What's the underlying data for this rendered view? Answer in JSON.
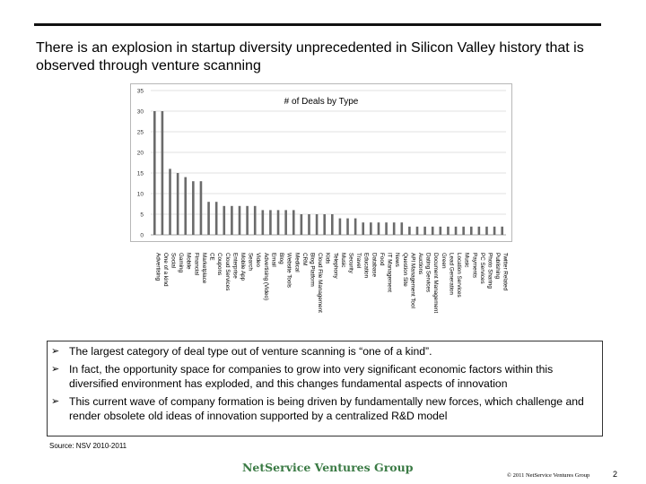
{
  "slide": {
    "title": "There is an explosion in startup diversity unprecedented in Silicon Valley history that is observed through venture scanning",
    "bullets": [
      "The largest category of deal type out of venture scanning is “one of a kind”.",
      "In fact, the opportunity space for companies to grow into very significant economic factors within this diversified environment has exploded, and this changes fundamental aspects of innovation",
      "This current wave of company formation is being driven by fundamentally new forces, which challenge and render obsolete old ideas of innovation supported by a centralized R&D model"
    ],
    "bullet_icon": "arrow-right-icon",
    "source": "Source: NSV 2010-2011",
    "company": "NetService Ventures Group",
    "copyright": "© 2011 NetService Ventures Group",
    "page_number": "2"
  },
  "chart_data": {
    "type": "bar",
    "title": "# of Deals by Type",
    "xlabel": "",
    "ylabel": "",
    "ylim": [
      0,
      35
    ],
    "yticks": [
      "0",
      "5",
      "10",
      "15",
      "20",
      "25",
      "30",
      "35"
    ],
    "grid": true,
    "legend": "none",
    "bar_color": "#6b6b6b",
    "categories": [
      "Advertising",
      "One of a kind",
      "Social",
      "Gaming",
      "Mobile",
      "Financial",
      "Marketplace",
      "CE",
      "Coupons",
      "Cloud Services",
      "Enterprise",
      "Mobile App",
      "Search",
      "Video",
      "Advertising (Video)",
      "Email",
      "Blog",
      "Website Tools",
      "Medical",
      "CRM",
      "Blog Platform",
      "Cloud File Management",
      "Kids",
      "Telephony",
      "Music",
      "Security",
      "Travel",
      "Education",
      "Database",
      "Food",
      "IT Management",
      "News",
      "Question Site",
      "API Management Tool",
      "Auctions",
      "Dating Services",
      "Document Management",
      "Green",
      "Lead Generation",
      "Location Services",
      "Music",
      "Payments",
      "PC Services",
      "Photo Sharing",
      "Publishing",
      "Twitter Related"
    ],
    "values": [
      30,
      30,
      16,
      15,
      14,
      13,
      13,
      8,
      8,
      7,
      7,
      7,
      7,
      7,
      6,
      6,
      6,
      6,
      6,
      5,
      5,
      5,
      5,
      5,
      4,
      4,
      4,
      3,
      3,
      3,
      3,
      3,
      3,
      2,
      2,
      2,
      2,
      2,
      2,
      2,
      2,
      2,
      2,
      2,
      2,
      2
    ]
  }
}
